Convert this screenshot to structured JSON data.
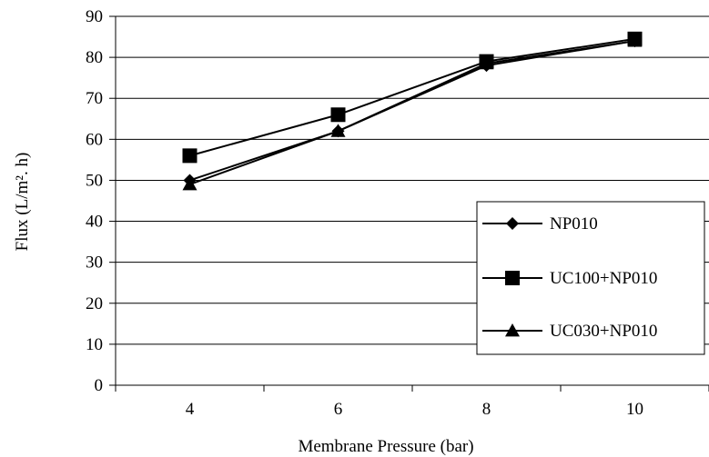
{
  "chart_data": {
    "type": "line",
    "xlabel": "Membrane Pressure (bar)",
    "ylabel": "Flux (L/m². h)",
    "x": [
      4,
      6,
      8,
      10
    ],
    "categories": [
      "4",
      "6",
      "8",
      "10"
    ],
    "ylim": [
      0,
      90
    ],
    "yticks": [
      0,
      10,
      20,
      30,
      40,
      50,
      60,
      70,
      80,
      90
    ],
    "grid": true,
    "legend_position": "bottom-right",
    "series": [
      {
        "name": "NP010",
        "marker": "diamond",
        "values": [
          50,
          62,
          78,
          84
        ]
      },
      {
        "name": "UC100+NP010",
        "marker": "square",
        "values": [
          56,
          66,
          79,
          84.5
        ]
      },
      {
        "name": "UC030+NP010",
        "marker": "triangle",
        "values": [
          49,
          62,
          78.5,
          84
        ]
      }
    ],
    "line_color": "#000000"
  }
}
